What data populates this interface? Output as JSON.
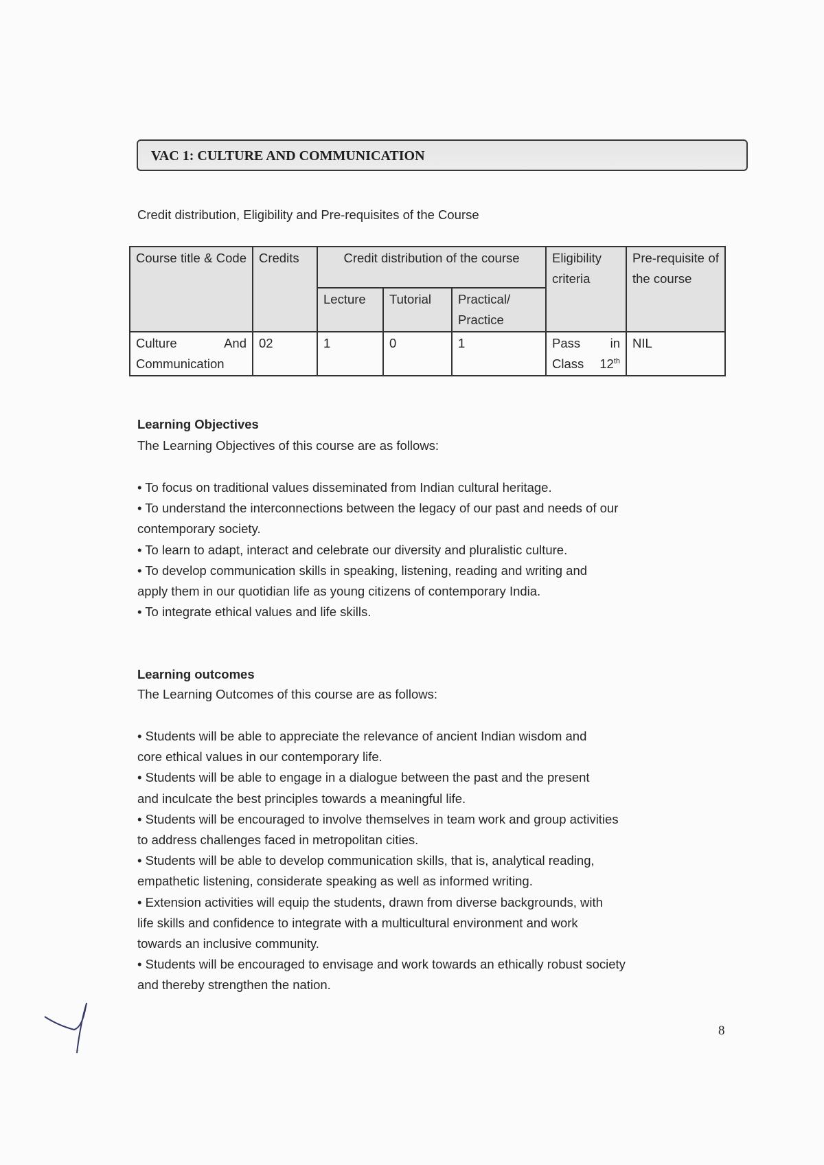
{
  "section_title": "VAC 1: CULTURE AND COMMUNICATION",
  "table_caption": "Credit distribution, Eligibility and Pre-requisites of the Course",
  "table": {
    "headers": {
      "course_title": "Course title & Code",
      "credits": "Credits",
      "credit_distribution": "Credit distribution of the course",
      "lecture": "Lecture",
      "tutorial": "Tutorial",
      "practical": "Practical/ Practice",
      "eligibility": "Eligibility criteria",
      "prerequisite": "Pre-requisite of the course"
    },
    "row": {
      "course_title": "Culture And Communication",
      "credits": "02",
      "lecture": "1",
      "tutorial": "0",
      "practical": "1",
      "eligibility": "Pass in Class 12",
      "eligibility_sup": "th",
      "prerequisite": "NIL"
    }
  },
  "objectives": {
    "heading": "Learning Objectives",
    "intro": "The Learning Objectives of this course are as follows:",
    "lines": [
      "• To focus on traditional values disseminated from Indian cultural heritage.",
      "• To understand the interconnections between the legacy of our past and needs of our",
      "contemporary society.",
      "• To learn to adapt, interact and celebrate our diversity and pluralistic culture.",
      "• To develop communication skills in speaking, listening, reading and writing and",
      "apply them in our quotidian life as young citizens of contemporary India.",
      "• To integrate ethical values and life skills."
    ]
  },
  "outcomes": {
    "heading": "Learning outcomes",
    "intro": "The Learning Outcomes of this course are as follows:",
    "lines": [
      "• Students will be able to appreciate the relevance of ancient Indian wisdom and",
      "core ethical values in our contemporary life.",
      "• Students will be able to engage in a dialogue between the past and the present",
      "and inculcate the best principles towards a meaningful life.",
      "• Students will be encouraged to involve themselves in team work and group activities",
      "to address challenges faced in metropolitan cities.",
      "• Students will be able to develop communication skills, that is, analytical reading,",
      "empathetic listening, considerate speaking as well as informed writing.",
      "• Extension activities will equip the students, drawn from diverse backgrounds, with",
      "life skills and confidence to integrate with a multicultural environment and work",
      "towards an inclusive community.",
      "• Students will be encouraged to envisage and work towards an ethically robust society",
      "and thereby strengthen the nation."
    ]
  },
  "page_number": "8",
  "signature": "handwritten-initial-mark"
}
